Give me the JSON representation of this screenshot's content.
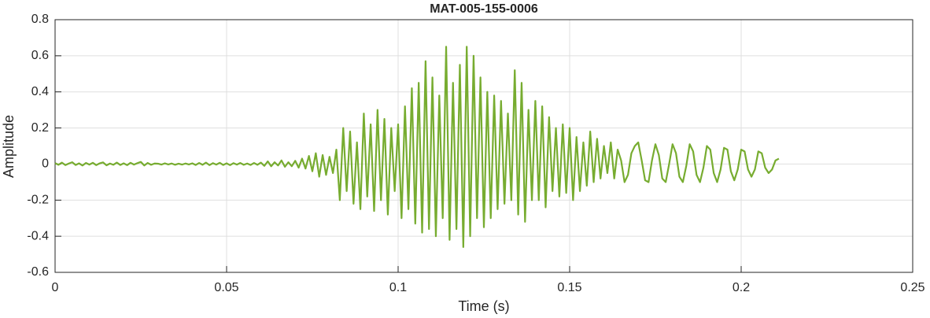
{
  "chart_data": {
    "type": "line",
    "title": "MAT-005-155-0006",
    "x_label": "Time (s)",
    "y_label": "Amplitude",
    "xlim": [
      0,
      0.25
    ],
    "xticks": [
      0,
      0.05,
      0.1,
      0.15,
      0.2,
      0.25
    ],
    "ylim": [
      -0.6,
      0.8
    ],
    "yticks": [
      -0.6,
      -0.4,
      -0.2,
      0,
      0.2,
      0.4,
      0.6,
      0.8
    ],
    "grid": true,
    "x": [
      0,
      0.001,
      0.002,
      0.003,
      0.004,
      0.005,
      0.006,
      0.007,
      0.008,
      0.009,
      0.01,
      0.011,
      0.012,
      0.013,
      0.014,
      0.015,
      0.016,
      0.017,
      0.018,
      0.019,
      0.02,
      0.021,
      0.022,
      0.023,
      0.024,
      0.025,
      0.026,
      0.027,
      0.028,
      0.029,
      0.03,
      0.031,
      0.032,
      0.033,
      0.034,
      0.035,
      0.036,
      0.037,
      0.038,
      0.039,
      0.04,
      0.041,
      0.042,
      0.043,
      0.044,
      0.045,
      0.046,
      0.047,
      0.048,
      0.049,
      0.05,
      0.051,
      0.052,
      0.053,
      0.054,
      0.055,
      0.056,
      0.057,
      0.058,
      0.059,
      0.06,
      0.061,
      0.062,
      0.063,
      0.064,
      0.065,
      0.066,
      0.067,
      0.068,
      0.069,
      0.07,
      0.071,
      0.072,
      0.073,
      0.074,
      0.075,
      0.076,
      0.077,
      0.078,
      0.079,
      0.08,
      0.081,
      0.082,
      0.083,
      0.084,
      0.085,
      0.086,
      0.087,
      0.088,
      0.089,
      0.09,
      0.091,
      0.092,
      0.093,
      0.094,
      0.095,
      0.096,
      0.097,
      0.098,
      0.099,
      0.1,
      0.101,
      0.102,
      0.103,
      0.104,
      0.105,
      0.106,
      0.107,
      0.108,
      0.109,
      0.11,
      0.111,
      0.112,
      0.113,
      0.114,
      0.115,
      0.116,
      0.117,
      0.118,
      0.119,
      0.12,
      0.121,
      0.122,
      0.123,
      0.124,
      0.125,
      0.126,
      0.127,
      0.128,
      0.129,
      0.13,
      0.131,
      0.132,
      0.133,
      0.134,
      0.135,
      0.136,
      0.137,
      0.138,
      0.139,
      0.14,
      0.141,
      0.142,
      0.143,
      0.144,
      0.145,
      0.146,
      0.147,
      0.148,
      0.149,
      0.15,
      0.151,
      0.152,
      0.153,
      0.154,
      0.155,
      0.156,
      0.157,
      0.158,
      0.159,
      0.16,
      0.161,
      0.162,
      0.163,
      0.164,
      0.165,
      0.166,
      0.167,
      0.168,
      0.169,
      0.17,
      0.171,
      0.172,
      0.173,
      0.174,
      0.175,
      0.176,
      0.177,
      0.178,
      0.179,
      0.18,
      0.181,
      0.182,
      0.183,
      0.184,
      0.185,
      0.186,
      0.187,
      0.188,
      0.189,
      0.19,
      0.191,
      0.192,
      0.193,
      0.194,
      0.195,
      0.196,
      0.197,
      0.198,
      0.199,
      0.2,
      0.201,
      0.202,
      0.203,
      0.204,
      0.205,
      0.206,
      0.207,
      0.208,
      0.209,
      0.21,
      0.211
    ],
    "series": [
      {
        "color": "#77ac30",
        "values": [
          0.005,
          -0.004,
          0.008,
          -0.006,
          0.003,
          0.01,
          -0.005,
          0.004,
          -0.008,
          0.006,
          -0.003,
          0.007,
          -0.006,
          0.004,
          0.009,
          -0.007,
          0.003,
          -0.004,
          0.008,
          -0.005,
          0.004,
          -0.006,
          0.007,
          -0.003,
          0.005,
          0.012,
          -0.008,
          0.006,
          -0.004,
          0.003,
          0.002,
          -0.003,
          0.004,
          -0.002,
          0.003,
          -0.004,
          0.002,
          -0.003,
          0.003,
          -0.002,
          0.004,
          -0.005,
          0.006,
          -0.004,
          0.008,
          -0.006,
          0.005,
          -0.003,
          0.007,
          -0.005,
          0.004,
          -0.006,
          0.005,
          -0.003,
          0.006,
          -0.004,
          0.003,
          -0.005,
          0.006,
          -0.004,
          0.008,
          -0.01,
          0.015,
          -0.012,
          0.01,
          -0.008,
          0.02,
          -0.015,
          0.01,
          -0.012,
          0.018,
          -0.02,
          0.03,
          -0.025,
          0.045,
          -0.04,
          0.06,
          -0.07,
          0.05,
          -0.06,
          0.04,
          -0.05,
          0.08,
          -0.2,
          0.2,
          -0.15,
          0.18,
          -0.22,
          0.12,
          -0.25,
          0.28,
          -0.18,
          0.22,
          -0.26,
          0.3,
          -0.2,
          0.25,
          -0.28,
          0.2,
          -0.15,
          0.22,
          -0.3,
          0.32,
          -0.25,
          0.42,
          -0.33,
          0.45,
          -0.38,
          0.57,
          -0.36,
          0.48,
          -0.4,
          0.38,
          -0.3,
          0.65,
          -0.42,
          0.45,
          -0.36,
          0.55,
          -0.46,
          0.65,
          -0.4,
          0.6,
          -0.3,
          0.48,
          -0.35,
          0.4,
          -0.3,
          0.38,
          -0.25,
          0.35,
          -0.22,
          0.28,
          -0.2,
          0.52,
          -0.28,
          0.45,
          -0.32,
          0.3,
          -0.2,
          0.35,
          -0.2,
          0.32,
          -0.24,
          0.26,
          -0.15,
          0.2,
          -0.18,
          0.22,
          -0.16,
          0.2,
          -0.2,
          0.15,
          -0.15,
          0.12,
          -0.12,
          0.18,
          -0.1,
          0.14,
          -0.08,
          0.1,
          -0.05,
          0.12,
          -0.08,
          0.08,
          0.02,
          -0.1,
          -0.06,
          0.06,
          0.1,
          0.12,
          0.02,
          -0.09,
          -0.1,
          0.02,
          0.11,
          0.05,
          -0.08,
          -0.1,
          0.0,
          0.11,
          0.06,
          -0.07,
          -0.1,
          -0.01,
          0.11,
          0.07,
          -0.06,
          -0.1,
          -0.02,
          0.1,
          0.08,
          -0.05,
          -0.1,
          -0.03,
          0.09,
          0.08,
          -0.04,
          -0.09,
          -0.03,
          0.08,
          0.07,
          -0.03,
          -0.07,
          -0.03,
          0.07,
          0.06,
          -0.02,
          -0.05,
          -0.03,
          0.02,
          0.03
        ]
      }
    ]
  }
}
